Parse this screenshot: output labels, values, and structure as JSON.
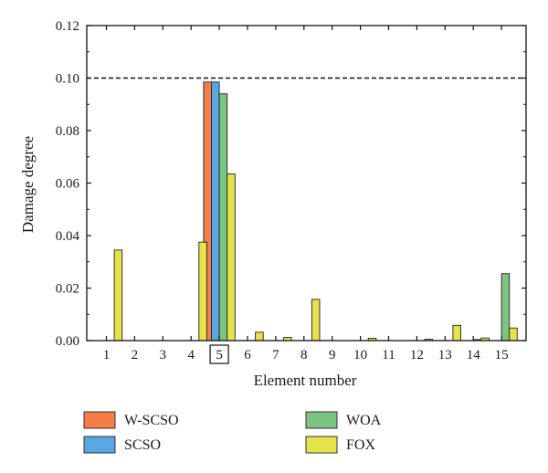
{
  "chart_data": {
    "type": "bar",
    "xlabel": "Element number",
    "ylabel": "Damage degree",
    "ylim": [
      0,
      0.12
    ],
    "yticks": [
      "0.00",
      "0.02",
      "0.04",
      "0.06",
      "0.08",
      "0.10",
      "0.12"
    ],
    "categories": [
      "1",
      "2",
      "3",
      "4",
      "5",
      "6",
      "7",
      "8",
      "9",
      "10",
      "11",
      "12",
      "13",
      "14",
      "15"
    ],
    "highlighted_category": "5",
    "threshold": 0.1,
    "legend_position": "bottom",
    "series": [
      {
        "name": "W-SCSO",
        "color": "#f47d4a",
        "values": [
          0,
          0,
          0,
          0,
          0.0985,
          0,
          0,
          0,
          0,
          0,
          0,
          0,
          0,
          0,
          0
        ]
      },
      {
        "name": "SCSO",
        "color": "#5aa6e0",
        "values": [
          0,
          0,
          0,
          0,
          0.0985,
          0,
          0,
          0,
          0,
          0,
          0,
          0,
          0,
          0,
          0
        ]
      },
      {
        "name": "WOA",
        "color": "#7cc47f",
        "values": [
          0,
          0,
          0,
          0,
          0.094,
          0,
          0,
          0,
          0,
          0,
          0,
          0,
          0,
          0.0004,
          0.0255
        ]
      },
      {
        "name": "FOX",
        "color": "#e4e34a",
        "values": [
          0.0345,
          0,
          0,
          0.0375,
          0.0635,
          0.0032,
          0.0012,
          0.0157,
          0,
          0.0009,
          0,
          0.0005,
          0.0058,
          0.001,
          0.0048
        ]
      }
    ]
  }
}
